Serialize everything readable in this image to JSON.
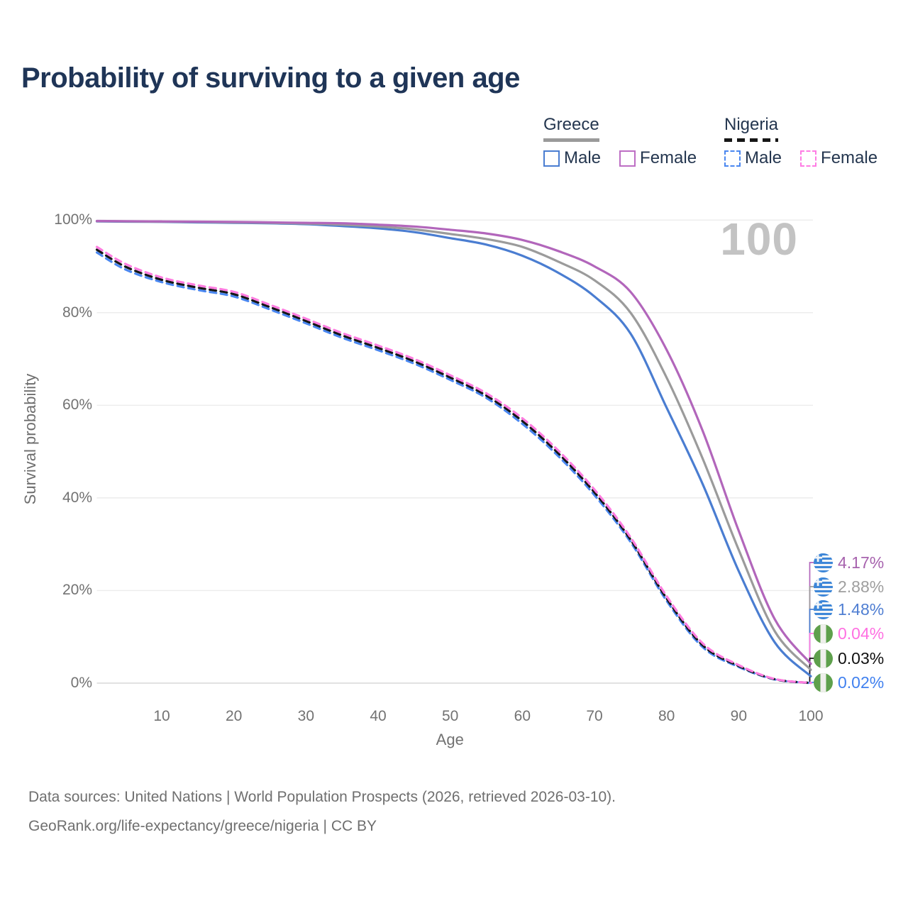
{
  "title": "Probability of surviving to a given age",
  "watermark_age": "100",
  "legend": {
    "groups": [
      {
        "label": "Greece",
        "rule_style": "solid",
        "items": [
          {
            "label": "Male",
            "color": "#4a7dd1",
            "dashed": false
          },
          {
            "label": "Female",
            "color": "#bd6ec4",
            "dashed": false
          }
        ]
      },
      {
        "label": "Nigeria",
        "rule_style": "dashed",
        "items": [
          {
            "label": "Male",
            "color": "#4a87f0",
            "dashed": true
          },
          {
            "label": "Female",
            "color": "#ff7ce4",
            "dashed": true
          }
        ]
      }
    ]
  },
  "chart_data": {
    "type": "line",
    "title": "Probability of surviving to a given age",
    "xlabel": "Age",
    "ylabel": "Survival probability",
    "xlim": [
      1,
      100
    ],
    "ylim": [
      0,
      100
    ],
    "grid": "horizontal",
    "x_ticks": [
      10,
      20,
      30,
      40,
      50,
      60,
      70,
      80,
      90,
      100
    ],
    "y_ticks": [
      {
        "value": 0,
        "label": "0%"
      },
      {
        "value": 20,
        "label": "20%"
      },
      {
        "value": 40,
        "label": "40%"
      },
      {
        "value": 60,
        "label": "60%"
      },
      {
        "value": 80,
        "label": "80%"
      },
      {
        "value": 100,
        "label": "100%"
      }
    ],
    "ages": [
      1,
      5,
      10,
      15,
      20,
      25,
      30,
      35,
      40,
      45,
      50,
      55,
      60,
      65,
      70,
      75,
      80,
      85,
      90,
      95,
      100
    ],
    "series": [
      {
        "name": "Greece Female",
        "country": "greece",
        "sex": "Female",
        "color": "#b266bb",
        "dashed": false,
        "end_label": "4.17%",
        "end_label_color": "#a763ae",
        "flag": "greece-flag",
        "values": [
          99.8,
          99.75,
          99.7,
          99.65,
          99.6,
          99.5,
          99.4,
          99.3,
          99.0,
          98.6,
          97.9,
          97.1,
          95.7,
          93.3,
          90.0,
          84.5,
          72.0,
          54.5,
          32.9,
          13.8,
          4.17
        ]
      },
      {
        "name": "Greece Both sexes",
        "country": "greece",
        "sex": "Both",
        "color": "#9b9b9b",
        "dashed": false,
        "end_label": "2.88%",
        "end_label_color": "#9e9e9e",
        "flag": "greece-flag",
        "values": [
          99.75,
          99.7,
          99.65,
          99.6,
          99.5,
          99.4,
          99.25,
          99.0,
          98.6,
          98.0,
          97.0,
          95.9,
          94.2,
          91.0,
          87.0,
          80.0,
          66.0,
          48.5,
          28.8,
          11.2,
          2.88
        ]
      },
      {
        "name": "Greece Male",
        "country": "greece",
        "sex": "Male",
        "color": "#4a7dd1",
        "dashed": false,
        "end_label": "1.48%",
        "end_label_color": "#4f7ed2",
        "flag": "greece-flag",
        "values": [
          99.7,
          99.65,
          99.6,
          99.5,
          99.4,
          99.3,
          99.1,
          98.7,
          98.2,
          97.4,
          96.1,
          94.7,
          92.3,
          88.6,
          83.5,
          75.5,
          59.5,
          43.0,
          24.2,
          8.8,
          1.48
        ]
      },
      {
        "name": "Nigeria Female",
        "country": "nigeria",
        "sex": "Female",
        "color": "#ff7ce0",
        "dashed": true,
        "end_label": "0.04%",
        "end_label_color": "#ff70e2",
        "flag": "nigeria-flag",
        "values": [
          94.2,
          90.5,
          87.6,
          85.9,
          84.5,
          81.7,
          78.7,
          75.6,
          72.9,
          70.0,
          66.5,
          62.6,
          57.2,
          50.2,
          41.8,
          31.5,
          18.8,
          8.6,
          3.9,
          0.9,
          0.04
        ]
      },
      {
        "name": "Nigeria Both sexes",
        "country": "nigeria",
        "sex": "Both",
        "color": "#161616",
        "dashed": true,
        "end_label": "0.03%",
        "end_label_color": "#111111",
        "flag": "nigeria-flag",
        "values": [
          93.6,
          89.9,
          87.1,
          85.4,
          84.0,
          81.2,
          78.2,
          75.1,
          72.4,
          69.5,
          66.0,
          62.1,
          56.6,
          49.6,
          41.2,
          31.0,
          18.3,
          8.2,
          3.7,
          0.85,
          0.03
        ]
      },
      {
        "name": "Nigeria Male",
        "country": "nigeria",
        "sex": "Male",
        "color": "#4a87f0",
        "dashed": true,
        "end_label": "0.02%",
        "end_label_color": "#4181ef",
        "flag": "nigeria-flag",
        "values": [
          93.0,
          89.3,
          86.6,
          84.9,
          83.5,
          80.7,
          77.7,
          74.6,
          71.9,
          69.0,
          65.5,
          61.6,
          56.0,
          49.0,
          40.6,
          30.5,
          17.8,
          7.8,
          3.5,
          0.8,
          0.02
        ]
      }
    ]
  },
  "colors": {
    "grid": "#ececec",
    "baseline": "#d9d9d9",
    "tick_text": "#727272",
    "title_text": "#1f3557",
    "watermark": "#c3c3c3",
    "greece_flag_blue": "#3d86d8",
    "nigeria_flag_green": "#5ea04c"
  },
  "footer": {
    "line1": "Data sources: United Nations | World Population Prospects (2026, retrieved 2026-03-10).",
    "line2": "GeoRank.org/life-expectancy/greece/nigeria | CC BY"
  }
}
